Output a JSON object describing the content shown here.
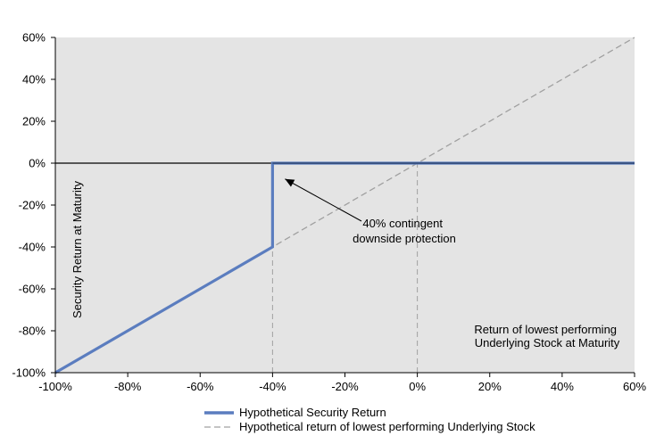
{
  "chart_data": {
    "type": "line",
    "title": "",
    "xlabel": "Return of lowest performing Underlying Stock at Maturity",
    "xlabel_lines": [
      "Return of lowest performing",
      "Underlying Stock at Maturity"
    ],
    "ylabel": "Security Return at Maturity",
    "xlim": [
      -100,
      60
    ],
    "ylim": [
      -100,
      60
    ],
    "x_ticks": [
      -100,
      -80,
      -60,
      -40,
      -20,
      0,
      20,
      40,
      60
    ],
    "y_ticks": [
      -100,
      -80,
      -60,
      -40,
      -20,
      0,
      20,
      40,
      60
    ],
    "x_tick_labels": [
      "-100%",
      "-80%",
      "-60%",
      "-40%",
      "-20%",
      "0%",
      "20%",
      "40%",
      "60%"
    ],
    "y_tick_labels": [
      "-100%",
      "-80%",
      "-60%",
      "-40%",
      "-20%",
      "0%",
      "20%",
      "40%",
      "60%"
    ],
    "background": "#e4e4e4",
    "grid": false,
    "legend_position": "bottom",
    "series": [
      {
        "name": "Hypothetical Security Return",
        "style": "solid",
        "color": "#5b7dbf",
        "points": [
          [
            -100,
            -100
          ],
          [
            -40,
            -40
          ],
          [
            -40,
            0
          ],
          [
            60,
            0
          ]
        ]
      },
      {
        "name": "Hypothetical return of lowest performing Underlying Stock",
        "style": "dashed",
        "color": "#a0a0a0",
        "points": [
          [
            -100,
            -100
          ],
          [
            60,
            60
          ]
        ]
      }
    ],
    "reference_lines": [
      {
        "axis": "x",
        "value": -40,
        "from": -100,
        "to": 0
      },
      {
        "axis": "x",
        "value": 0,
        "from": -100,
        "to": 0
      }
    ],
    "annotation": {
      "text_lines": [
        "40% contingent",
        "downside protection"
      ],
      "arrow_to": [
        -40,
        -5
      ]
    }
  }
}
